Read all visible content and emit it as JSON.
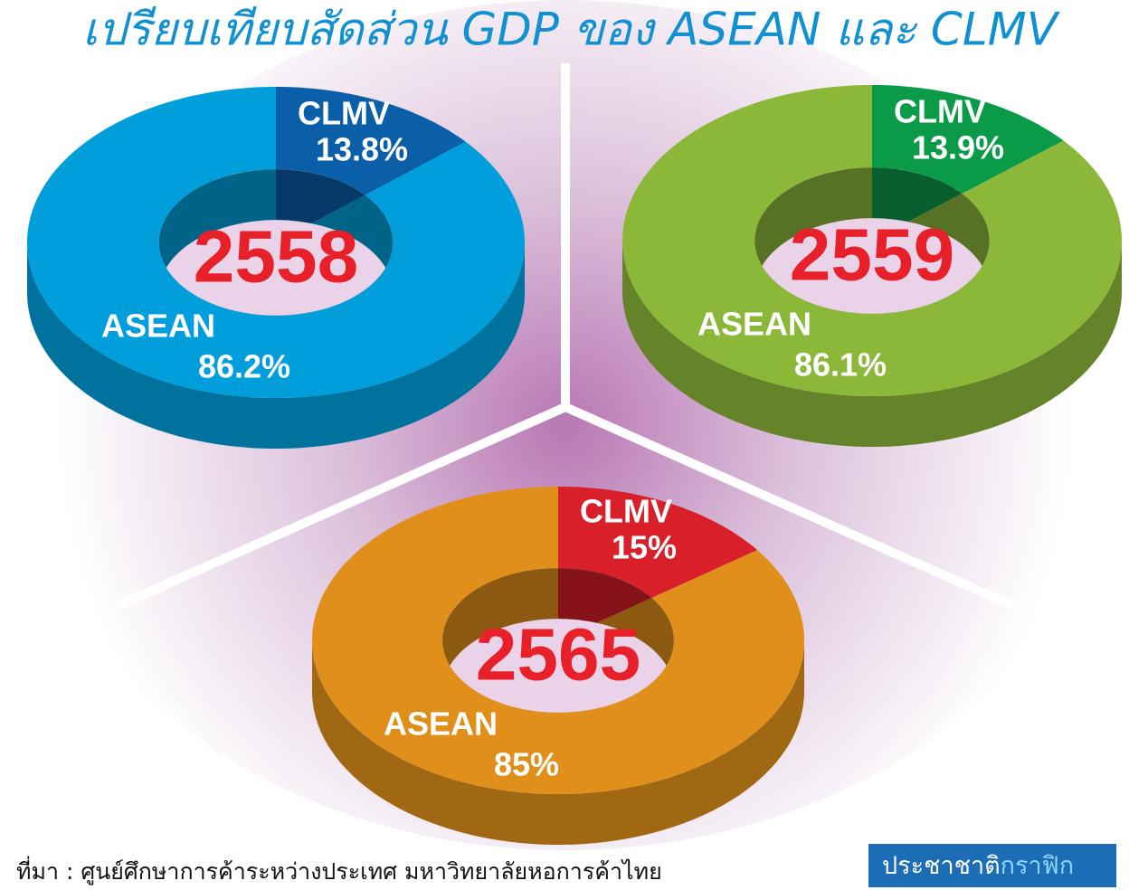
{
  "title": "เปรียบเทียบสัดส่วน GDP ของ ASEAN และ CLMV",
  "source": "ที่มา : ศูนย์ศึกษาการค้าระหว่างประเทศ มหาวิทยาลัยหอการค้าไทย",
  "logo": {
    "text": "ประชาชาติ",
    "accent": "กราฟิก"
  },
  "chart_data": [
    {
      "type": "pie",
      "title": "2558",
      "categories": [
        "CLMV",
        "ASEAN"
      ],
      "values": [
        13.8,
        86.2
      ],
      "value_labels": [
        "13.8%",
        "86.2%"
      ],
      "colors": [
        "#0b5ea8",
        "#009fdb"
      ]
    },
    {
      "type": "pie",
      "title": "2559",
      "categories": [
        "CLMV",
        "ASEAN"
      ],
      "values": [
        13.9,
        86.1
      ],
      "value_labels": [
        "13.9%",
        "86.1%"
      ],
      "colors": [
        "#0a9a48",
        "#8cb83a"
      ]
    },
    {
      "type": "pie",
      "title": "2565",
      "categories": [
        "CLMV",
        "ASEAN"
      ],
      "values": [
        15,
        85
      ],
      "value_labels": [
        "15%",
        "85%"
      ],
      "colors": [
        "#d81f2a",
        "#e0901a"
      ]
    }
  ]
}
